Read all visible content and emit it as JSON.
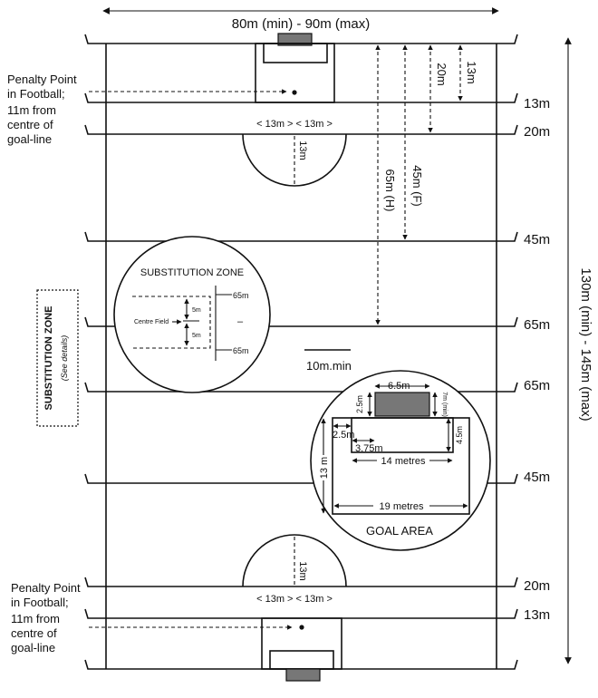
{
  "dimensions": {
    "width_label": "80m (min) - 90m (max)",
    "length_label": "130m (min) - 145m (max)",
    "span_13m": "13m",
    "span_20m": "20m",
    "span_45m_f": "45m (F)",
    "span_65m_h": "65m (H)",
    "arc_radius": "13m",
    "arc_spacing": "< 13m >  < 13m >",
    "scale": "10m.min"
  },
  "side_lines": {
    "top_13": "13m",
    "top_20": "20m",
    "top_45": "45m",
    "top_65": "65m",
    "bottom_65": "65m",
    "bottom_45": "45m",
    "bottom_20": "20m",
    "bottom_13": "13m"
  },
  "penalty_note": {
    "line1": "Penalty Point",
    "line2": "in Football;",
    "line3": "11m from",
    "line4": "centre of",
    "line5": "goal-line"
  },
  "substitution": {
    "side_label": "SUBSTITUTION ZONE",
    "side_sub": "(See details)",
    "circle_title": "SUBSTITUTION ZONE",
    "centre_field": "Centre Field",
    "mark_5m_a": "5m",
    "mark_5m_b": "5m",
    "mark_65_top": "65m",
    "mark_65_bottom": "65m",
    "mark_dash": "–"
  },
  "goal_area": {
    "title": "GOAL AREA",
    "width_6_5": "6.5m",
    "depth_2_5_top": "2.5m",
    "depth_7m_min": "7m (min)",
    "depth_4_5": "4.5m",
    "offset_2_5": "2.5m",
    "offset_3_75": "3.75m",
    "width_14": "14 metres",
    "width_19": "19 metres",
    "depth_13": "13 m"
  },
  "colors": {
    "lines": "#111111",
    "goal_fill": "#777777",
    "background": "#ffffff"
  }
}
